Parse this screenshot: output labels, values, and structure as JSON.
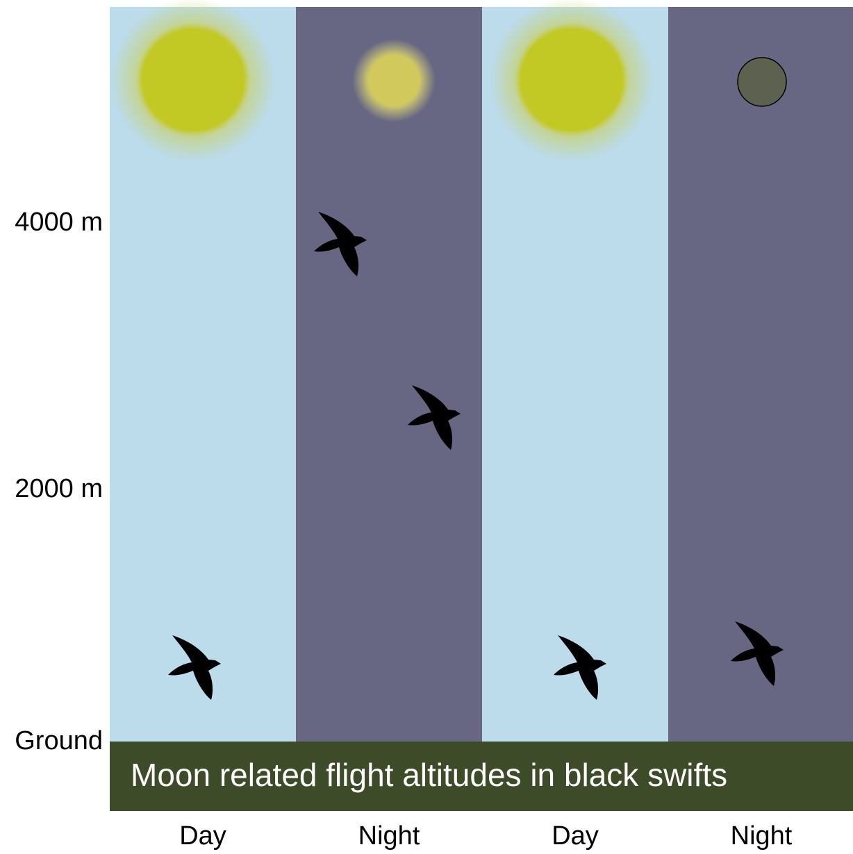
{
  "axis": {
    "labels": [
      "4000 m",
      "2000 m",
      "Ground"
    ]
  },
  "banner": {
    "title": "Moon related flight altitudes in black swifts"
  },
  "columns": [
    "Day",
    "Night",
    "Day",
    "Night"
  ]
}
